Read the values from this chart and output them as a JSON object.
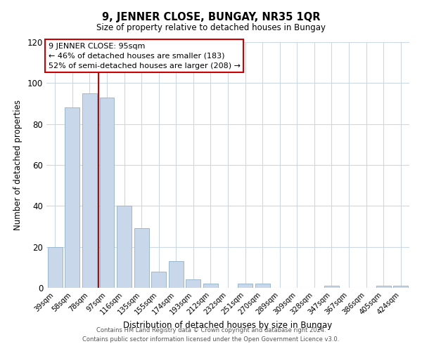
{
  "title": "9, JENNER CLOSE, BUNGAY, NR35 1QR",
  "subtitle": "Size of property relative to detached houses in Bungay",
  "xlabel": "Distribution of detached houses by size in Bungay",
  "ylabel": "Number of detached properties",
  "categories": [
    "39sqm",
    "58sqm",
    "78sqm",
    "97sqm",
    "116sqm",
    "135sqm",
    "155sqm",
    "174sqm",
    "193sqm",
    "212sqm",
    "232sqm",
    "251sqm",
    "270sqm",
    "289sqm",
    "309sqm",
    "328sqm",
    "347sqm",
    "367sqm",
    "386sqm",
    "405sqm",
    "424sqm"
  ],
  "values": [
    20,
    88,
    95,
    93,
    40,
    29,
    8,
    13,
    4,
    2,
    0,
    2,
    2,
    0,
    0,
    0,
    1,
    0,
    0,
    1,
    1
  ],
  "bar_color": "#c8d8ea",
  "bar_edge_color": "#9ab8cc",
  "vline_color": "#cc0000",
  "ylim": [
    0,
    120
  ],
  "yticks": [
    0,
    20,
    40,
    60,
    80,
    100,
    120
  ],
  "annotation_title": "9 JENNER CLOSE: 95sqm",
  "annotation_line1": "← 46% of detached houses are smaller (183)",
  "annotation_line2": "52% of semi-detached houses are larger (208) →",
  "footer_line1": "Contains HM Land Registry data © Crown copyright and database right 2024.",
  "footer_line2": "Contains public sector information licensed under the Open Government Licence v3.0.",
  "background_color": "#ffffff",
  "grid_color": "#ccd8e4"
}
